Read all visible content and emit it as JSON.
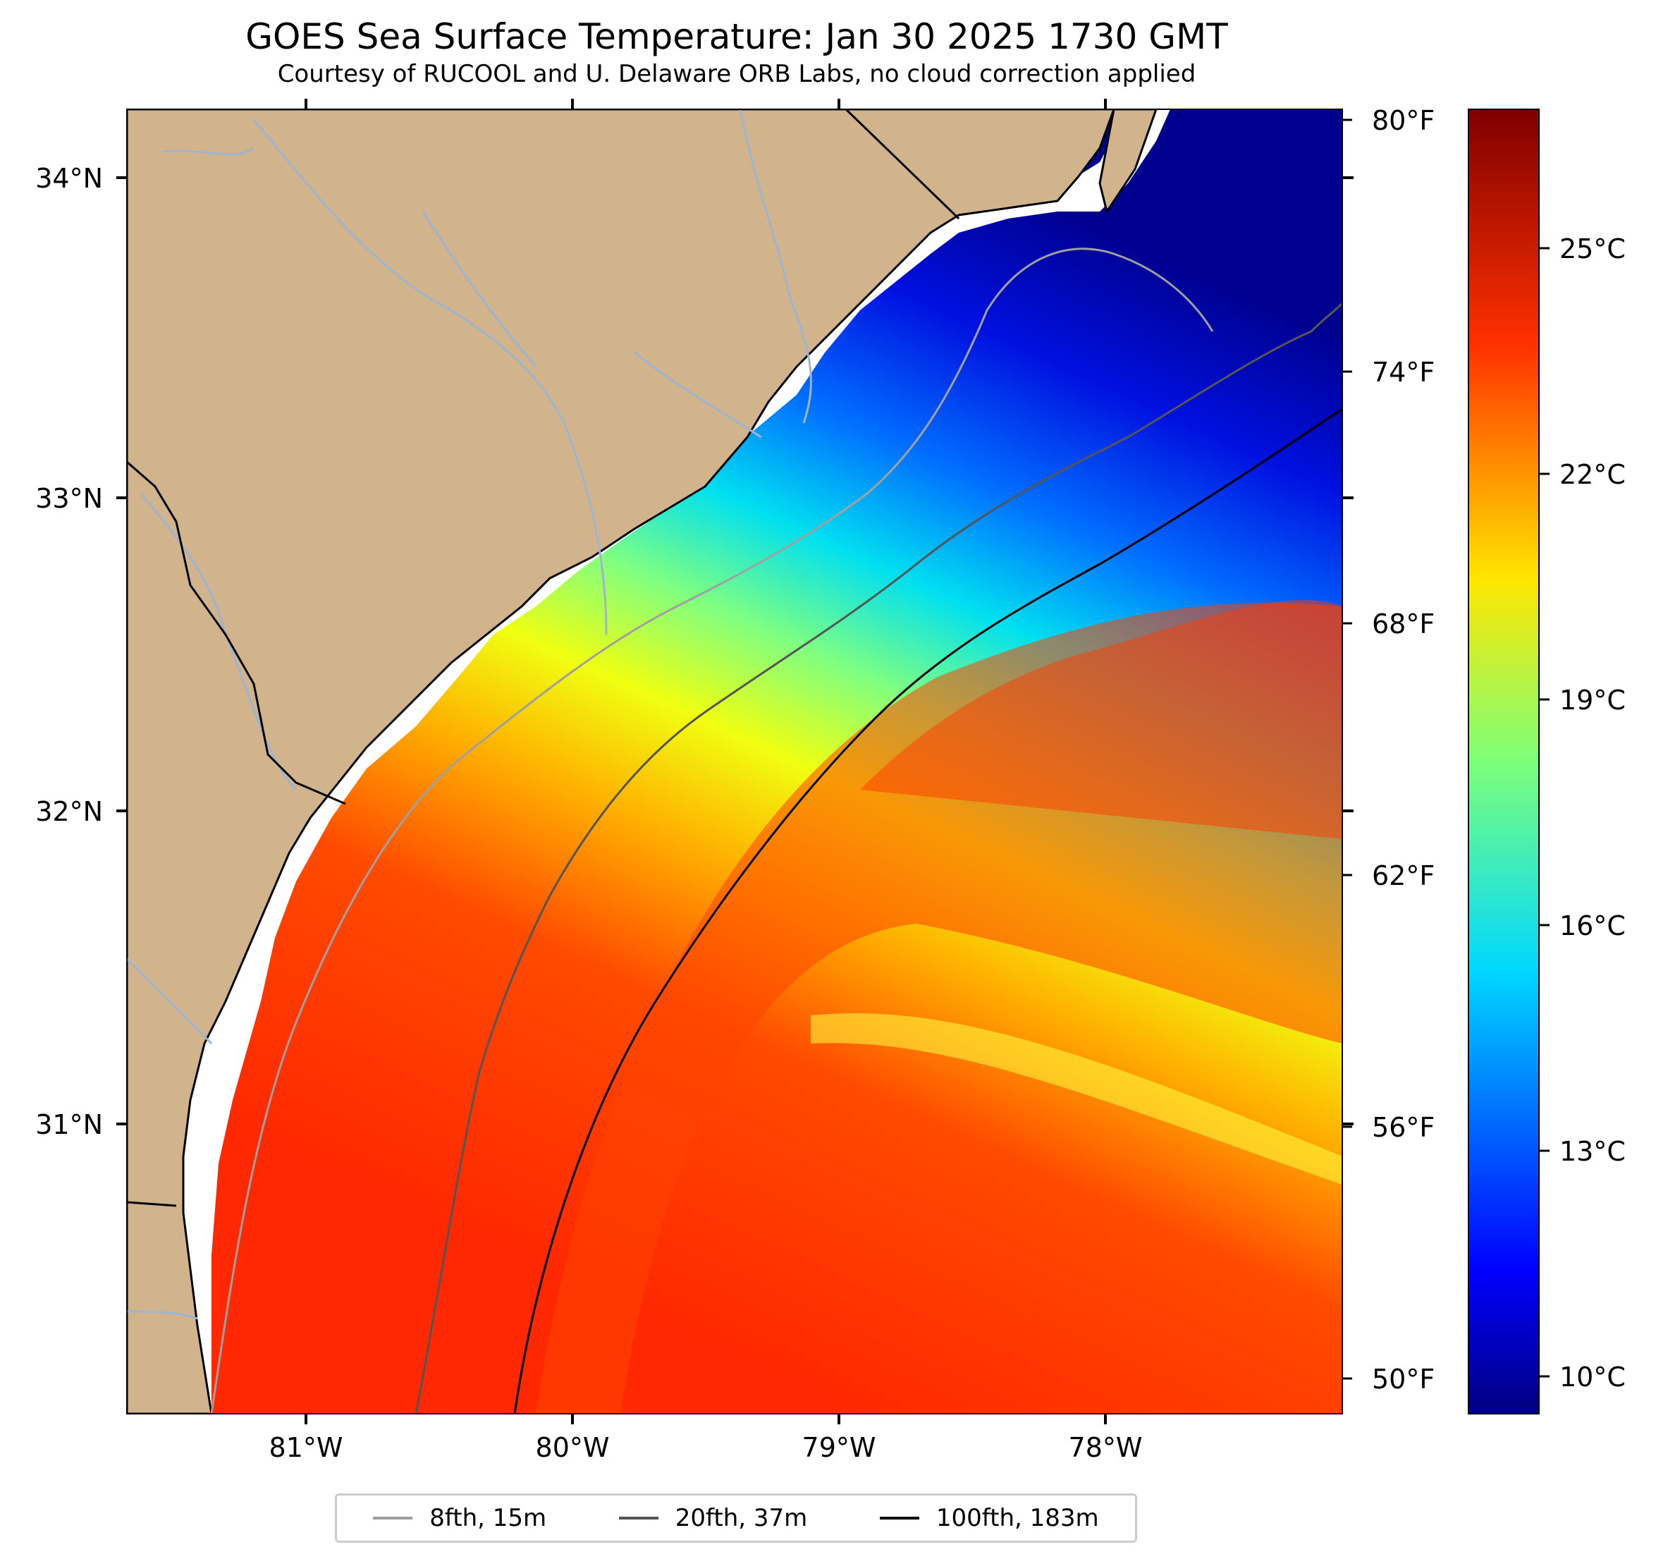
{
  "title": "GOES Sea Surface Temperature: Jan 30 2025 1730 GMT",
  "subtitle": "Courtesy of RUCOOL and U. Delaware ORB Labs, no cloud correction applied",
  "map": {
    "lon_labels": [
      "81°W",
      "80°W",
      "79°W",
      "78°W"
    ],
    "lat_labels": [
      "34°N",
      "33°N",
      "32°N",
      "31°N"
    ],
    "colors": {
      "land": "#d2b48c",
      "rivers": "#9fb4d0",
      "coast": "#000000"
    }
  },
  "colorbar": {
    "fahrenheit_labels": [
      "80°F",
      "74°F",
      "68°F",
      "62°F",
      "56°F",
      "50°F"
    ],
    "celsius_labels": [
      "25°C",
      "22°C",
      "19°C",
      "16°C",
      "13°C",
      "10°C"
    ],
    "colormap": "jet"
  },
  "legend": [
    {
      "label": "8fth, 15m",
      "color": "#a0a0a0"
    },
    {
      "label": "20fth, 37m",
      "color": "#555555"
    },
    {
      "label": "100fth, 183m",
      "color": "#000000"
    }
  ]
}
